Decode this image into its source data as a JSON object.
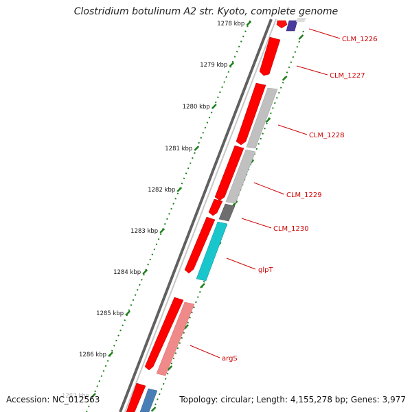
{
  "title": "Clostridium botulinum A2 str. Kyoto, complete genome",
  "footer": {
    "accession": "Accession: NC_012563",
    "summary": "Topology: circular; Length: 4,155,278 bp; Genes: 3,977"
  },
  "colors": {
    "backbone": "#808080",
    "tick": "#1a7f1a",
    "gene_forward": "#ff0000",
    "gene_light_grey": "#c0c0c0",
    "gene_dark_grey": "#6e6e6e",
    "gene_navy": "#4b3a9e",
    "gene_cyan": "#19c6cc",
    "gene_pink": "#f08a8a",
    "gene_steel": "#4a7fb5",
    "label": "#cc0000"
  },
  "scale": {
    "ticks": [
      "1278 kbp",
      "1279 kbp",
      "1280 kbp",
      "1281 kbp",
      "1282 kbp",
      "1283 kbp",
      "1284 kbp",
      "1285 kbp",
      "1286 kbp",
      "1287 kbp"
    ]
  },
  "gene_labels": [
    "CLM_1226",
    "CLM_1227",
    "CLM_1228",
    "CLM_1229",
    "CLM_1230",
    "glpT",
    "argS"
  ]
}
